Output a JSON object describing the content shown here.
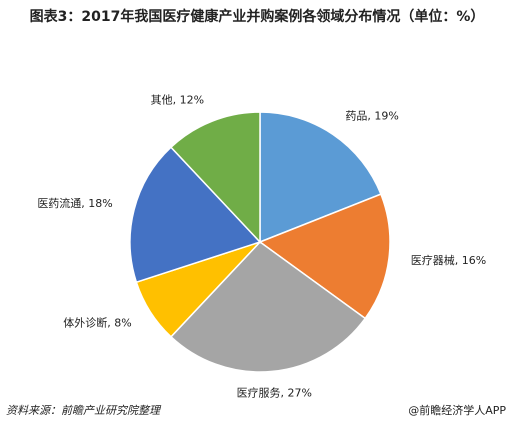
{
  "chart_data": {
    "type": "pie",
    "title": "图表3：2017年我国医疗健康产业并购案例各领域分布情况（单位：%）",
    "values": [
      19,
      16,
      27,
      8,
      18,
      12
    ],
    "value_labels": [
      "药品, 19%",
      "医疗器械, 16%",
      "医疗服务, 27%",
      "体外诊断, 8%",
      "医药流通, 18%",
      "其他, 12%"
    ],
    "colors": [
      "#5b9bd5",
      "#ed7d31",
      "#a5a5a5",
      "#ffc000",
      "#4472c4",
      "#70ad47"
    ],
    "source": "资料来源：前瞻产业研究院整理",
    "credit": "@前瞻经济学人APP"
  }
}
